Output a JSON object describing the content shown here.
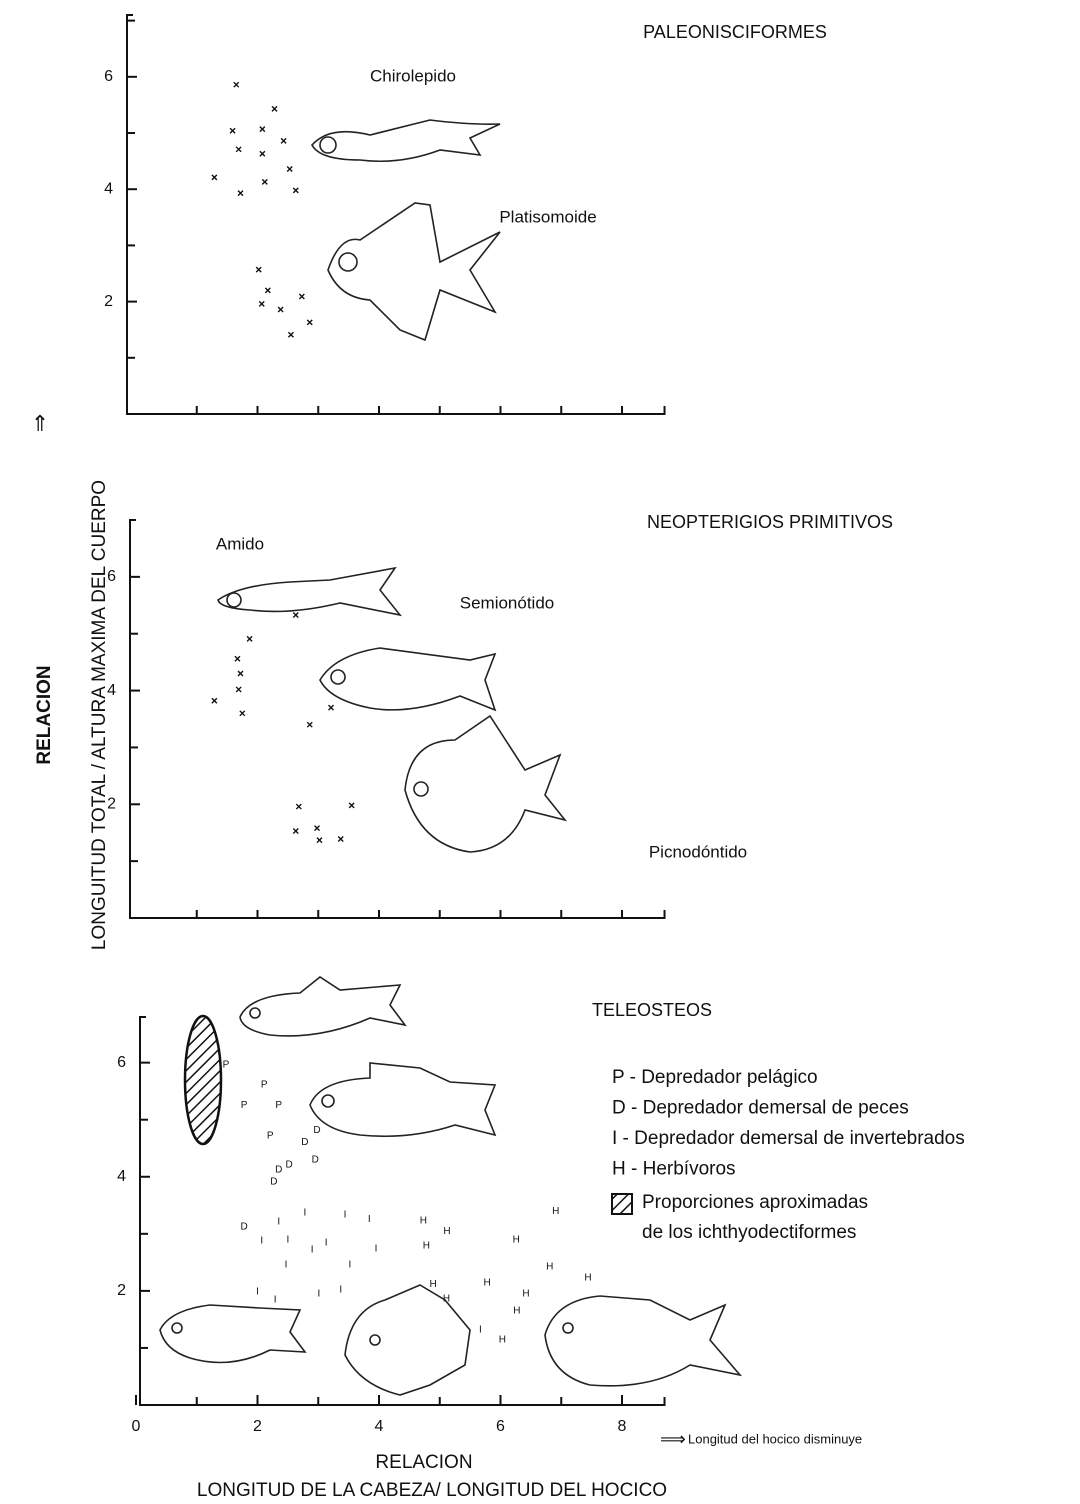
{
  "chart_data": [
    {
      "type": "scatter",
      "title": "PALEONISCIFORMES",
      "annotations": [
        "Chirolepido",
        "Platisomoide"
      ],
      "xlim": [
        0,
        8.7
      ],
      "ylim": [
        0,
        7.1
      ],
      "yticks": [
        2,
        4,
        6
      ],
      "series": [
        {
          "name": "Paleonisciformes",
          "color": "#111",
          "x": [
            1.65,
            2.28,
            1.59,
            2.08,
            2.43,
            1.69,
            2.08,
            2.53,
            1.29,
            2.12,
            1.72,
            2.63,
            2.02,
            2.17,
            2.73,
            2.07,
            2.38,
            2.86,
            2.55
          ],
          "values": [
            5.86,
            5.43,
            5.04,
            5.07,
            4.86,
            4.71,
            4.63,
            4.36,
            4.21,
            4.13,
            3.93,
            3.98,
            2.57,
            2.2,
            2.09,
            1.96,
            1.86,
            1.63,
            1.41
          ]
        }
      ]
    },
    {
      "type": "scatter",
      "title": "NEOPTERIGIOS PRIMITIVOS",
      "annotations": [
        "Amido",
        "Semionótido",
        "Picnodóntido"
      ],
      "xlim": [
        0,
        8.7
      ],
      "ylim": [
        0,
        7
      ],
      "yticks": [
        2,
        4,
        6
      ],
      "ylabel": [
        "RELACION",
        "LONGUITUD TOTAL / ALTURA MAXIMA DEL CUERPO"
      ],
      "series": [
        {
          "name": "Neopterigios primitivos",
          "color": "#111",
          "x": [
            1.87,
            2.63,
            1.67,
            1.72,
            1.69,
            1.29,
            1.75,
            3.21,
            2.86,
            2.68,
            3.55,
            2.63,
            2.98,
            3.02,
            3.37
          ],
          "values": [
            4.91,
            5.33,
            4.56,
            4.3,
            4.02,
            3.82,
            3.6,
            3.7,
            3.4,
            1.96,
            1.98,
            1.53,
            1.58,
            1.37,
            1.39
          ]
        }
      ]
    },
    {
      "type": "scatter",
      "title": "TELEOSTEOS",
      "xlim": [
        0,
        8.7
      ],
      "ylim": [
        0,
        6.8
      ],
      "yticks": [
        2,
        4,
        6
      ],
      "xticks": [
        0,
        2,
        4,
        6,
        8
      ],
      "xlabel": [
        "RELACION",
        "LONGITUD DE LA CABEZA/ LONGITUD DEL HOCICO"
      ],
      "note": "Longitud del hocico disminuye",
      "shaded_label": [
        "Proporciones aproximadas",
        "de los ichthyodectiformes"
      ],
      "series": [
        {
          "name": "P - Depredador pelágico",
          "marker": "P",
          "color": "#111",
          "x": [
            1.48,
            2.11,
            2.35,
            1.78,
            2.21
          ],
          "values": [
            5.96,
            5.61,
            5.25,
            5.25,
            4.72
          ]
        },
        {
          "name": "D - Depredador demersal de peces",
          "marker": "D",
          "color": "#111",
          "x": [
            2.98,
            2.78,
            2.52,
            2.95,
            2.35,
            2.27,
            1.78
          ],
          "values": [
            4.81,
            4.6,
            4.21,
            4.3,
            4.12,
            3.91,
            3.12
          ]
        },
        {
          "name": "I - Depredador demersal de invertebrados",
          "marker": "I",
          "color": "#111",
          "x": [
            2.07,
            2.35,
            2.78,
            3.44,
            3.84,
            2.5,
            2.9,
            3.13,
            3.95,
            2.47,
            3.52,
            2.0,
            2.29,
            3.01,
            3.37,
            5.67
          ],
          "values": [
            2.88,
            3.21,
            3.37,
            3.33,
            3.25,
            2.89,
            2.72,
            2.84,
            2.74,
            2.46,
            2.46,
            1.98,
            1.84,
            1.95,
            2.02,
            1.32
          ]
        },
        {
          "name": "H - Herbívoros",
          "marker": "H",
          "color": "#111",
          "x": [
            4.73,
            5.12,
            4.78,
            6.26,
            6.91,
            6.81,
            4.89,
            5.11,
            5.78,
            6.42,
            7.44,
            6.27,
            6.03
          ],
          "values": [
            3.23,
            3.04,
            2.79,
            2.89,
            3.39,
            2.42,
            2.11,
            1.86,
            2.14,
            1.95,
            2.23,
            1.65,
            1.14
          ]
        }
      ]
    }
  ]
}
